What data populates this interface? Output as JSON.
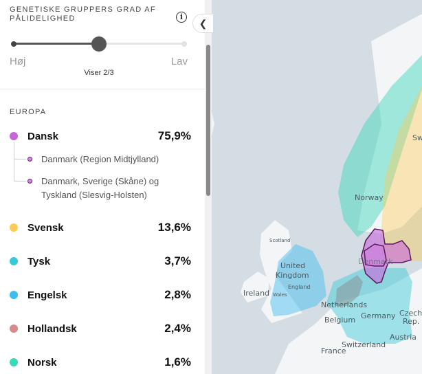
{
  "panel": {
    "title": "GENETISKE GRUPPERS GRAD AF PÅLIDELIGHED",
    "info_icon": "info-icon",
    "slider": {
      "min_label": "Høj",
      "max_label": "Lav",
      "status": "Viser 2/3",
      "value": 2,
      "steps": 3
    },
    "region": "EUROPA",
    "groups": [
      {
        "name": "Dansk",
        "percent": "75,9%",
        "color": "#c965db",
        "subregions": [
          "Danmark (Region Midtjylland)",
          "Danmark, Sverige (Skåne) og Tyskland (Slesvig-Holsten)"
        ]
      },
      {
        "name": "Svensk",
        "percent": "13,6%",
        "color": "#ffcb52"
      },
      {
        "name": "Tysk",
        "percent": "3,7%",
        "color": "#36c9d8"
      },
      {
        "name": "Engelsk",
        "percent": "2,8%",
        "color": "#3bbdf0"
      },
      {
        "name": "Hollandsk",
        "percent": "2,4%",
        "color": "#d98a8a"
      },
      {
        "name": "Norsk",
        "percent": "1,6%",
        "color": "#38d8b9"
      }
    ]
  },
  "collapse_icon": "chevron-left-icon",
  "map": {
    "labels": {
      "norway": "Norway",
      "sweden": "Sw",
      "scotland": "Scotland",
      "uk1": "United",
      "uk2": "Kingdom",
      "england": "England",
      "wales": "Wales",
      "ireland": "Ireland",
      "denmark": "Denmark",
      "netherlands": "Netherlands",
      "belgium": "Belgium",
      "germany": "Germany",
      "czech1": "Czech",
      "czech2": "Rep.",
      "austria": "Austria",
      "switzerland": "Switzerland",
      "france": "France"
    }
  }
}
